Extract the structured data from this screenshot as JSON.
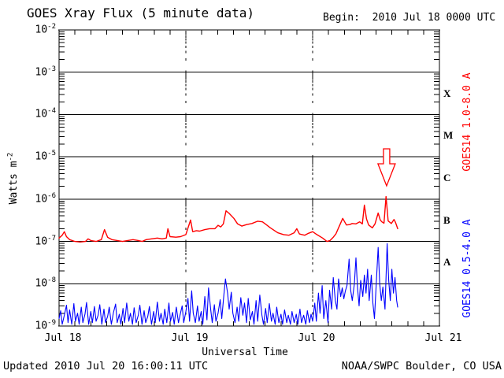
{
  "header": {
    "title": "GOES Xray Flux (5 minute data)",
    "begin": "Begin:  2010 Jul 18 0000 UTC"
  },
  "footer": {
    "updated": "Updated 2010 Jul 20 16:00:11 UTC",
    "source": "NOAA/SWPC Boulder, CO USA"
  },
  "axes": {
    "x_title": "Universal Time",
    "y_title_text": "Watts m",
    "y_title_exp": "-2",
    "y_tick_base": "10",
    "y_tick_exponents": [
      -2,
      -3,
      -4,
      -5,
      -6,
      -7,
      -8,
      -9
    ],
    "x_tick_labels": [
      "Jul 18",
      "Jul 19",
      "Jul 20",
      "Jul 21"
    ],
    "flare_classes": [
      "X",
      "M",
      "C",
      "B",
      "A"
    ]
  },
  "series_labels": {
    "red": "GOES14 1.0-8.0 A",
    "blue": "GOES14 0.5-4.0 A"
  },
  "colors": {
    "red": "#ff0000",
    "blue": "#0000ff",
    "axis": "#000000",
    "background": "#ffffff"
  },
  "chart_data": {
    "type": "line",
    "title": "GOES Xray Flux (5 minute data)",
    "xlabel": "Universal Time",
    "ylabel": "Watts m^-2",
    "x_unit": "hours since 2010 Jul 18 0000 UTC",
    "x_range_hours": [
      0,
      72
    ],
    "x_tick_hours": [
      0,
      24,
      48,
      72
    ],
    "x_tick_labels": [
      "Jul 18",
      "Jul 19",
      "Jul 20",
      "Jul 21"
    ],
    "minor_x_tick_hours": 3,
    "y_scale": "log",
    "y_range": [
      1e-09,
      0.01
    ],
    "grid": "horizontal lines at each decade; dashed vertical lines at day boundaries",
    "legend_position": "rotated labels in right margin",
    "flare_class_letters": {
      "X": 0.000316,
      "M": 3.16e-05,
      "C": 3.16e-06,
      "B": 3.16e-07,
      "A": 3.16e-08
    },
    "annotation": {
      "type": "open-down-arrow",
      "color": "#ff0000",
      "x_hours": 62,
      "points_at_flux": 1.15e-06
    },
    "series": [
      {
        "name": "GOES14 1.0-8.0 A",
        "color": "#ff0000",
        "points": [
          [
            0,
            1.2e-07
          ],
          [
            0.6,
            1.4e-07
          ],
          [
            1.0,
            1.7e-07
          ],
          [
            1.4,
            1.3e-07
          ],
          [
            2,
            1.1e-07
          ],
          [
            3,
            1e-07
          ],
          [
            4,
            9.7e-08
          ],
          [
            5,
            1e-07
          ],
          [
            5.5,
            1.15e-07
          ],
          [
            6,
            1.05e-07
          ],
          [
            7,
            1e-07
          ],
          [
            8,
            1.1e-07
          ],
          [
            8.6,
            1.9e-07
          ],
          [
            9.2,
            1.25e-07
          ],
          [
            10,
            1.1e-07
          ],
          [
            11,
            1.05e-07
          ],
          [
            12,
            1e-07
          ],
          [
            13,
            1.05e-07
          ],
          [
            14,
            1.1e-07
          ],
          [
            15,
            1.05e-07
          ],
          [
            15.7,
            1e-07
          ],
          [
            16.5,
            1.1e-07
          ],
          [
            17.5,
            1.15e-07
          ],
          [
            18.6,
            1.2e-07
          ],
          [
            19.5,
            1.15e-07
          ],
          [
            20.3,
            1.2e-07
          ],
          [
            20.6,
            2e-07
          ],
          [
            21,
            1.3e-07
          ],
          [
            22.1,
            1.26e-07
          ],
          [
            23,
            1.3e-07
          ],
          [
            24,
            1.45e-07
          ],
          [
            24.9,
            3.2e-07
          ],
          [
            25.3,
            1.7e-07
          ],
          [
            26,
            1.8e-07
          ],
          [
            26.6,
            1.75e-07
          ],
          [
            27.6,
            1.9e-07
          ],
          [
            28.5,
            2e-07
          ],
          [
            29.5,
            2e-07
          ],
          [
            30.1,
            2.4e-07
          ],
          [
            30.6,
            2.2e-07
          ],
          [
            31.1,
            2.6e-07
          ],
          [
            31.6,
            5.3e-07
          ],
          [
            32.2,
            4.6e-07
          ],
          [
            33.1,
            3.5e-07
          ],
          [
            33.8,
            2.6e-07
          ],
          [
            34.6,
            2.3e-07
          ],
          [
            35.5,
            2.5e-07
          ],
          [
            36.5,
            2.65e-07
          ],
          [
            37.6,
            3e-07
          ],
          [
            38.5,
            2.9e-07
          ],
          [
            39.2,
            2.5e-07
          ],
          [
            40,
            2.1e-07
          ],
          [
            41.4,
            1.6e-07
          ],
          [
            42.5,
            1.45e-07
          ],
          [
            43.5,
            1.4e-07
          ],
          [
            44.5,
            1.6e-07
          ],
          [
            45,
            2e-07
          ],
          [
            45.5,
            1.5e-07
          ],
          [
            46.5,
            1.4e-07
          ],
          [
            47.2,
            1.55e-07
          ],
          [
            48,
            1.7e-07
          ],
          [
            48.8,
            1.45e-07
          ],
          [
            49.9,
            1.2e-07
          ],
          [
            50.7,
            1e-07
          ],
          [
            51.3,
            1.05e-07
          ],
          [
            51.9,
            1.26e-07
          ],
          [
            52.4,
            1.5e-07
          ],
          [
            52.9,
            2.1e-07
          ],
          [
            53.7,
            3.5e-07
          ],
          [
            54.4,
            2.45e-07
          ],
          [
            55,
            2.5e-07
          ],
          [
            55.5,
            2.65e-07
          ],
          [
            56.2,
            2.6e-07
          ],
          [
            56.9,
            2.9e-07
          ],
          [
            57.4,
            2.6e-07
          ],
          [
            57.8,
            7.2e-07
          ],
          [
            58.2,
            3.4e-07
          ],
          [
            58.6,
            2.45e-07
          ],
          [
            59.3,
            2.1e-07
          ],
          [
            59.8,
            2.6e-07
          ],
          [
            60.4,
            4.7e-07
          ],
          [
            60.8,
            3.2e-07
          ],
          [
            61.1,
            2.9e-07
          ],
          [
            61.5,
            2.7e-07
          ],
          [
            61.9,
            1.15e-06
          ],
          [
            62.3,
            3.05e-07
          ],
          [
            62.9,
            2.65e-07
          ],
          [
            63.4,
            3.3e-07
          ],
          [
            63.7,
            2.8e-07
          ],
          [
            64.1,
            2e-07
          ]
        ]
      },
      {
        "name": "GOES14 0.5-4.0 A",
        "color": "#0000ff",
        "points": [
          [
            0,
            1.5e-09
          ],
          [
            0.3,
            2.3e-09
          ],
          [
            0.6,
            1.1e-09
          ],
          [
            1,
            1.8e-09
          ],
          [
            1.4,
            3.1e-09
          ],
          [
            1.7,
            1.2e-09
          ],
          [
            2,
            2.4e-09
          ],
          [
            2.4,
            1.1e-09
          ],
          [
            2.8,
            3.4e-09
          ],
          [
            3.1,
            1.3e-09
          ],
          [
            3.5,
            2e-09
          ],
          [
            3.8,
            1.1e-09
          ],
          [
            4.2,
            2.8e-09
          ],
          [
            4.5,
            1.2e-09
          ],
          [
            4.9,
            1.9e-09
          ],
          [
            5.2,
            3.6e-09
          ],
          [
            5.6,
            1.1e-09
          ],
          [
            6,
            2.2e-09
          ],
          [
            6.3,
            1.2e-09
          ],
          [
            6.7,
            2.9e-09
          ],
          [
            7,
            1.3e-09
          ],
          [
            7.4,
            1.8e-09
          ],
          [
            7.7,
            3.2e-09
          ],
          [
            8.1,
            1.1e-09
          ],
          [
            8.5,
            2.5e-09
          ],
          [
            8.8,
            1.2e-09
          ],
          [
            9.2,
            1.7e-09
          ],
          [
            9.5,
            2.8e-09
          ],
          [
            9.9,
            1.1e-09
          ],
          [
            10.3,
            2.1e-09
          ],
          [
            10.7,
            3.3e-09
          ],
          [
            11,
            1.2e-09
          ],
          [
            11.4,
            1.9e-09
          ],
          [
            11.7,
            1.1e-09
          ],
          [
            12.1,
            2.6e-09
          ],
          [
            12.4,
            1.2e-09
          ],
          [
            12.8,
            3.5e-09
          ],
          [
            13.2,
            1.3e-09
          ],
          [
            13.5,
            2e-09
          ],
          [
            13.9,
            1.1e-09
          ],
          [
            14.2,
            2.7e-09
          ],
          [
            14.6,
            1.2e-09
          ],
          [
            15,
            1.8e-09
          ],
          [
            15.3,
            3.1e-09
          ],
          [
            15.7,
            1.1e-09
          ],
          [
            16.1,
            2.3e-09
          ],
          [
            16.4,
            1.2e-09
          ],
          [
            16.8,
            1.7e-09
          ],
          [
            17.1,
            2.9e-09
          ],
          [
            17.5,
            1.1e-09
          ],
          [
            17.9,
            2.2e-09
          ],
          [
            18.2,
            1.2e-09
          ],
          [
            18.6,
            3.7e-09
          ],
          [
            19,
            1.3e-09
          ],
          [
            19.3,
            2e-09
          ],
          [
            19.7,
            1.1e-09
          ],
          [
            20,
            2.5e-09
          ],
          [
            20.4,
            1.2e-09
          ],
          [
            20.8,
            3.5e-09
          ],
          [
            21.1,
            1.3e-09
          ],
          [
            21.5,
            2.1e-09
          ],
          [
            21.8,
            1.1e-09
          ],
          [
            22.2,
            2.8e-09
          ],
          [
            22.6,
            1.2e-09
          ],
          [
            22.9,
            1.8e-09
          ],
          [
            23.3,
            3e-09
          ],
          [
            23.6,
            1.2e-09
          ],
          [
            24,
            2.2e-09
          ],
          [
            24.4,
            4.5e-09
          ],
          [
            24.7,
            1.3e-09
          ],
          [
            25.1,
            6.8e-09
          ],
          [
            25.4,
            2e-09
          ],
          [
            25.8,
            1.2e-09
          ],
          [
            26.2,
            3e-09
          ],
          [
            26.5,
            1.3e-09
          ],
          [
            26.9,
            2.2e-09
          ],
          [
            27.2,
            1.1e-09
          ],
          [
            27.6,
            5e-09
          ],
          [
            28,
            1.4e-09
          ],
          [
            28.3,
            8e-09
          ],
          [
            28.7,
            2.5e-09
          ],
          [
            29,
            1.2e-09
          ],
          [
            29.4,
            3.2e-09
          ],
          [
            29.7,
            1.3e-09
          ],
          [
            30.1,
            2e-09
          ],
          [
            30.5,
            4.2e-09
          ],
          [
            30.8,
            1.5e-09
          ],
          [
            31.2,
            5.5e-09
          ],
          [
            31.5,
            1.3e-08
          ],
          [
            31.9,
            6e-09
          ],
          [
            32.2,
            2.5e-09
          ],
          [
            32.6,
            6.3e-09
          ],
          [
            32.9,
            2e-09
          ],
          [
            33.3,
            1.2e-09
          ],
          [
            33.7,
            2.8e-09
          ],
          [
            34,
            1.3e-09
          ],
          [
            34.4,
            4.7e-09
          ],
          [
            34.8,
            1.8e-09
          ],
          [
            35.1,
            3.5e-09
          ],
          [
            35.5,
            1.2e-09
          ],
          [
            35.8,
            4.5e-09
          ],
          [
            36.2,
            1.4e-09
          ],
          [
            36.6,
            2.2e-09
          ],
          [
            36.9,
            1.1e-09
          ],
          [
            37.3,
            4e-09
          ],
          [
            37.6,
            1.3e-09
          ],
          [
            38,
            5.4e-09
          ],
          [
            38.4,
            1.8e-09
          ],
          [
            38.7,
            1.1e-09
          ],
          [
            39.1,
            2.6e-09
          ],
          [
            39.4,
            1.2e-09
          ],
          [
            39.8,
            3.4e-09
          ],
          [
            40.2,
            1.3e-09
          ],
          [
            40.5,
            2e-09
          ],
          [
            40.9,
            1.1e-09
          ],
          [
            41.2,
            2.8e-09
          ],
          [
            41.6,
            1.2e-09
          ],
          [
            42,
            1.9e-09
          ],
          [
            42.3,
            1.1e-09
          ],
          [
            42.7,
            2.4e-09
          ],
          [
            43.1,
            1.2e-09
          ],
          [
            43.4,
            1.8e-09
          ],
          [
            43.8,
            1.1e-09
          ],
          [
            44.1,
            2.2e-09
          ],
          [
            44.5,
            1.2e-09
          ],
          [
            44.9,
            1.9e-09
          ],
          [
            45.2,
            1.1e-09
          ],
          [
            45.6,
            2.5e-09
          ],
          [
            45.9,
            1.2e-09
          ],
          [
            46.3,
            1.8e-09
          ],
          [
            46.7,
            1.1e-09
          ],
          [
            47,
            2.3e-09
          ],
          [
            47.4,
            1.2e-09
          ],
          [
            47.7,
            1.9e-09
          ],
          [
            48,
            1.3e-09
          ],
          [
            48.4,
            3.5e-09
          ],
          [
            48.7,
            1.3e-09
          ],
          [
            49.1,
            6e-09
          ],
          [
            49.4,
            2e-09
          ],
          [
            49.8,
            9e-09
          ],
          [
            50.1,
            1.5e-09
          ],
          [
            50.5,
            4e-09
          ],
          [
            50.9,
            1.2e-09
          ],
          [
            51.2,
            7e-09
          ],
          [
            51.6,
            2.5e-09
          ],
          [
            51.9,
            1.4e-08
          ],
          [
            52.3,
            4e-09
          ],
          [
            52.6,
            2.5e-09
          ],
          [
            52.9,
            1.3e-08
          ],
          [
            53.3,
            5e-09
          ],
          [
            53.6,
            8e-09
          ],
          [
            53.9,
            4.4e-09
          ],
          [
            54.2,
            6.8e-09
          ],
          [
            54.5,
            9e-09
          ],
          [
            54.9,
            3.8e-08
          ],
          [
            55.2,
            7e-09
          ],
          [
            55.5,
            4e-09
          ],
          [
            55.9,
            1e-08
          ],
          [
            56.2,
            4.1e-08
          ],
          [
            56.5,
            8e-09
          ],
          [
            56.8,
            3e-09
          ],
          [
            57.1,
            1.2e-08
          ],
          [
            57.5,
            5e-09
          ],
          [
            57.8,
            1.6e-08
          ],
          [
            58.1,
            6e-09
          ],
          [
            58.4,
            2.2e-08
          ],
          [
            58.7,
            4e-09
          ],
          [
            59.1,
            1.6e-08
          ],
          [
            59.4,
            3.5e-09
          ],
          [
            59.7,
            1.5e-09
          ],
          [
            60,
            8e-09
          ],
          [
            60.4,
            7.2e-08
          ],
          [
            60.7,
            1e-08
          ],
          [
            61,
            4e-09
          ],
          [
            61.3,
            8.4e-09
          ],
          [
            61.7,
            2.5e-09
          ],
          [
            62.1,
            8.9e-08
          ],
          [
            62.4,
            1.2e-08
          ],
          [
            62.7,
            4e-09
          ],
          [
            63,
            2.2e-08
          ],
          [
            63.3,
            6e-09
          ],
          [
            63.6,
            1.4e-08
          ],
          [
            63.9,
            4e-09
          ],
          [
            64.1,
            2.8e-09
          ]
        ]
      }
    ]
  }
}
